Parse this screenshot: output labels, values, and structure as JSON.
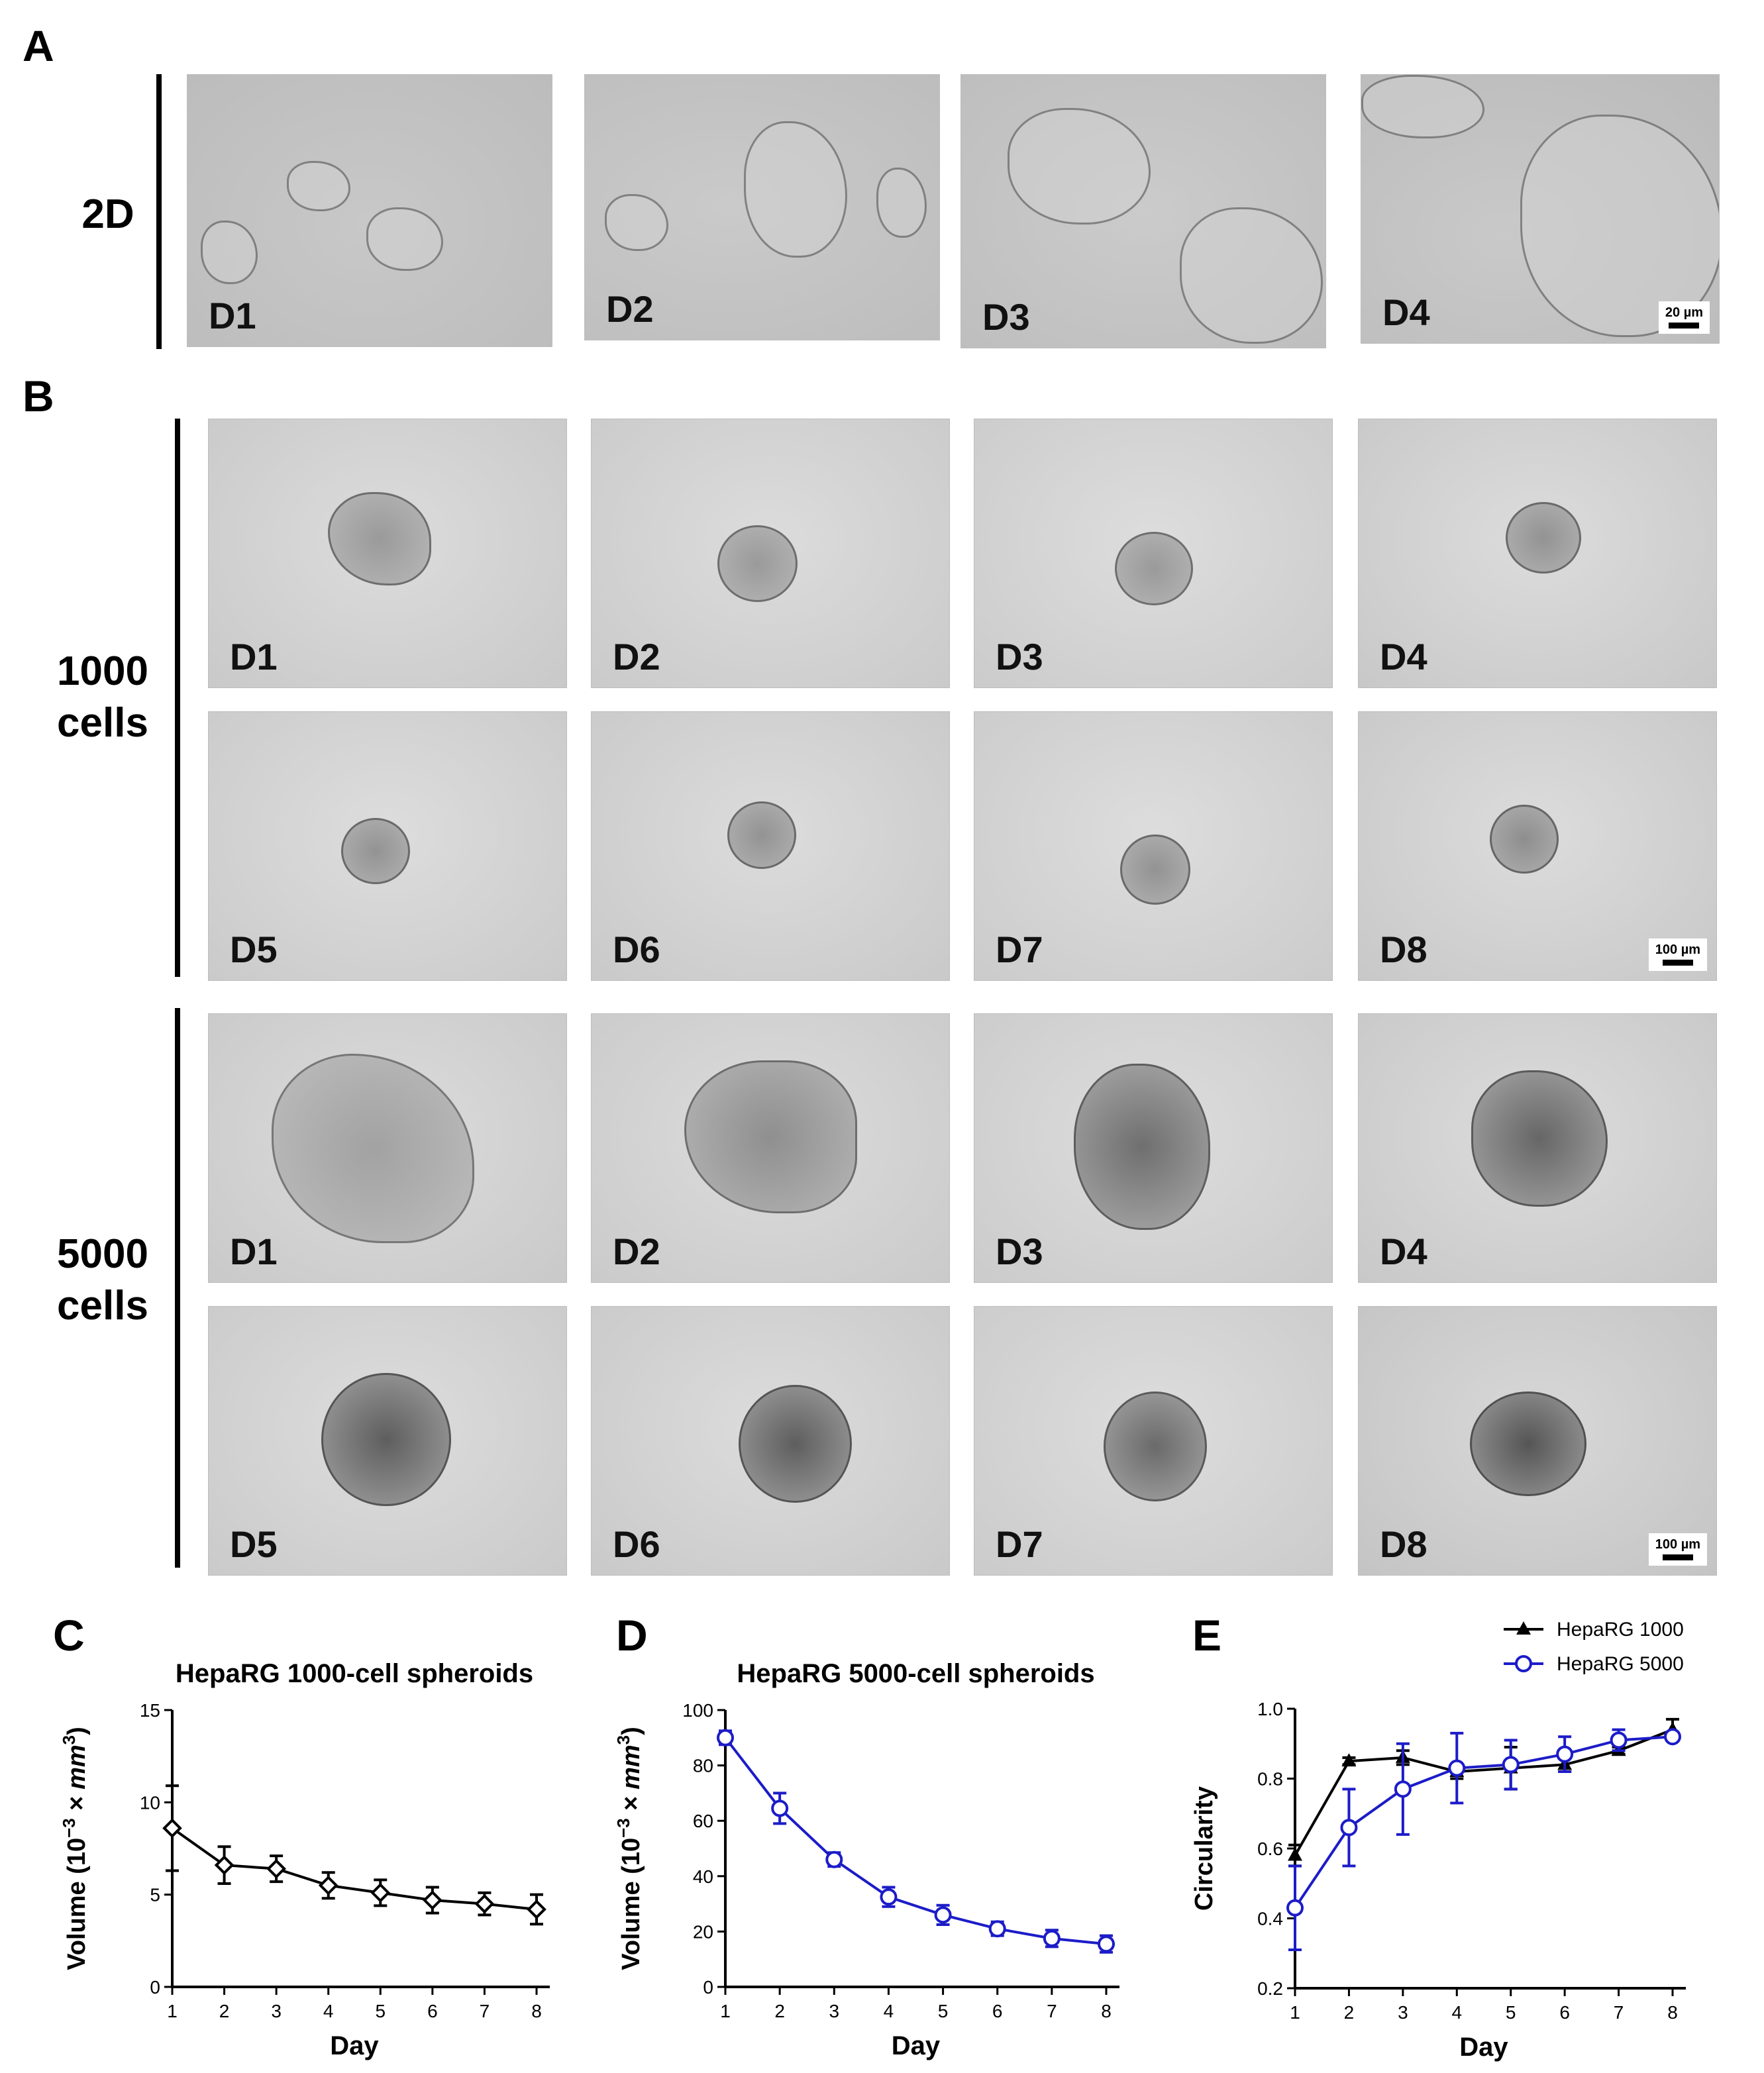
{
  "panel_letters": {
    "A": "A",
    "B": "B",
    "C": "C",
    "D": "D",
    "E": "E"
  },
  "row_labels": {
    "twoD": "2D",
    "cells1000_line1": "1000",
    "cells1000_line2": "cells",
    "cells5000_line1": "5000",
    "cells5000_line2": "cells"
  },
  "micrographs": {
    "row_2d": [
      "D1",
      "D2",
      "D3",
      "D4"
    ],
    "row_1000_top": [
      "D1",
      "D2",
      "D3",
      "D4"
    ],
    "row_1000_bottom": [
      "D5",
      "D6",
      "D7",
      "D8"
    ],
    "row_5000_top": [
      "D1",
      "D2",
      "D3",
      "D4"
    ],
    "row_5000_bottom": [
      "D5",
      "D6",
      "D7",
      "D8"
    ],
    "scale_2d": "20 µm",
    "scale_3d": "100 µm"
  },
  "chart_data": [
    {
      "id": "C",
      "type": "line",
      "title": "HepaRG 1000-cell spheroids",
      "xlabel": "Day",
      "ylabel_prefix": "Volume (10",
      "ylabel_exp": "−3",
      "ylabel_suffix": " × mm",
      "ylabel_unit_exp": "3",
      "ylabel_close": ")",
      "x": [
        1,
        2,
        3,
        4,
        5,
        6,
        7,
        8
      ],
      "ylim": [
        0,
        15
      ],
      "yticks": [
        0,
        5,
        10,
        15
      ],
      "series": [
        {
          "values": [
            8.6,
            6.6,
            6.4,
            5.5,
            5.1,
            4.7,
            4.5,
            4.2
          ],
          "errors": [
            2.3,
            1.0,
            0.7,
            0.7,
            0.7,
            0.7,
            0.6,
            0.8
          ],
          "color": "#000000",
          "marker": "diamond-open"
        }
      ]
    },
    {
      "id": "D",
      "type": "line",
      "title": "HepaRG 5000-cell spheroids",
      "xlabel": "Day",
      "ylabel_prefix": "Volume (10",
      "ylabel_exp": "−3",
      "ylabel_suffix": " × mm",
      "ylabel_unit_exp": "3",
      "ylabel_close": ")",
      "x": [
        1,
        2,
        3,
        4,
        5,
        6,
        7,
        8
      ],
      "ylim": [
        0,
        100
      ],
      "yticks": [
        0,
        20,
        40,
        60,
        80,
        100
      ],
      "series": [
        {
          "values": [
            90,
            64.5,
            46,
            32.5,
            26,
            21,
            17.5,
            15.5
          ],
          "errors": [
            2.5,
            5.5,
            2.5,
            3.5,
            3.5,
            2.5,
            3.0,
            3.0
          ],
          "color": "#1c1cc8",
          "marker": "circle-open"
        }
      ]
    },
    {
      "id": "E",
      "type": "line",
      "title": "",
      "xlabel": "Day",
      "ylabel": "Circularity",
      "x": [
        1,
        2,
        3,
        4,
        5,
        6,
        7,
        8
      ],
      "ylim": [
        0.2,
        1.0
      ],
      "yticks": [
        "0.2",
        "0.4",
        "0.6",
        "0.8",
        "1.0"
      ],
      "legend_position": "top-right",
      "series": [
        {
          "name": "HepaRG 1000",
          "values": [
            0.58,
            0.85,
            0.86,
            0.82,
            0.83,
            0.84,
            0.88,
            0.94
          ],
          "errors": [
            0.03,
            0.01,
            0.02,
            0.02,
            0.06,
            0.02,
            0.01,
            0.03
          ],
          "color": "#000000",
          "marker": "triangle-filled"
        },
        {
          "name": "HepaRG 5000",
          "values": [
            0.43,
            0.66,
            0.77,
            0.83,
            0.84,
            0.87,
            0.91,
            0.92
          ],
          "errors": [
            0.12,
            0.11,
            0.13,
            0.1,
            0.07,
            0.05,
            0.03,
            0.01
          ],
          "color": "#1c1cc8",
          "marker": "circle-open"
        }
      ]
    }
  ]
}
